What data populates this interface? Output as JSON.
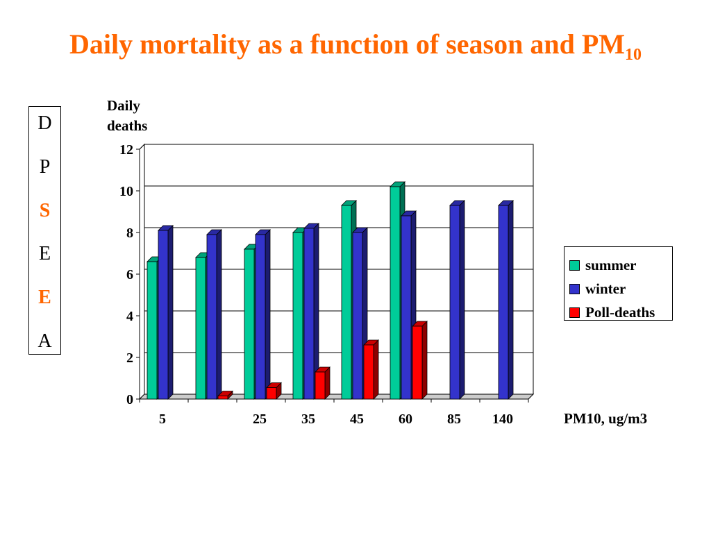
{
  "slide": {
    "title_main": "Daily mortality as a function of season and PM",
    "title_sub": "10",
    "dpseea": [
      {
        "letter": "D",
        "highlight": false
      },
      {
        "letter": "P",
        "highlight": false
      },
      {
        "letter": "S",
        "highlight": true
      },
      {
        "letter": "E",
        "highlight": false
      },
      {
        "letter": "E",
        "highlight": true
      },
      {
        "letter": "A",
        "highlight": false
      }
    ]
  },
  "colors": {
    "title": "#ff6600",
    "summer": "#00cc99",
    "winter": "#3333cc",
    "poll": "#ff0000"
  },
  "chart_data": {
    "type": "bar",
    "title": "",
    "ylabel_line1": "Daily",
    "ylabel_line2": "deaths",
    "xlabel": "PM10, ug/m3",
    "categories": [
      "5",
      "",
      "25",
      "35",
      "45",
      "60",
      "85",
      "140"
    ],
    "ylim": [
      0,
      12
    ],
    "yticks": [
      0,
      2,
      4,
      6,
      8,
      10,
      12
    ],
    "grid": true,
    "legend_position": "right",
    "series": [
      {
        "name": "summer",
        "color": "#00cc99",
        "values": [
          6.6,
          6.8,
          7.2,
          8.0,
          9.3,
          10.2,
          null,
          null
        ]
      },
      {
        "name": "winter",
        "color": "#3333cc",
        "values": [
          8.1,
          7.9,
          7.9,
          8.2,
          8.0,
          8.8,
          9.3,
          9.3
        ]
      },
      {
        "name": "Poll-deaths",
        "color": "#ff0000",
        "values": [
          null,
          0.15,
          0.55,
          1.3,
          2.6,
          3.5,
          null,
          null
        ]
      }
    ]
  }
}
